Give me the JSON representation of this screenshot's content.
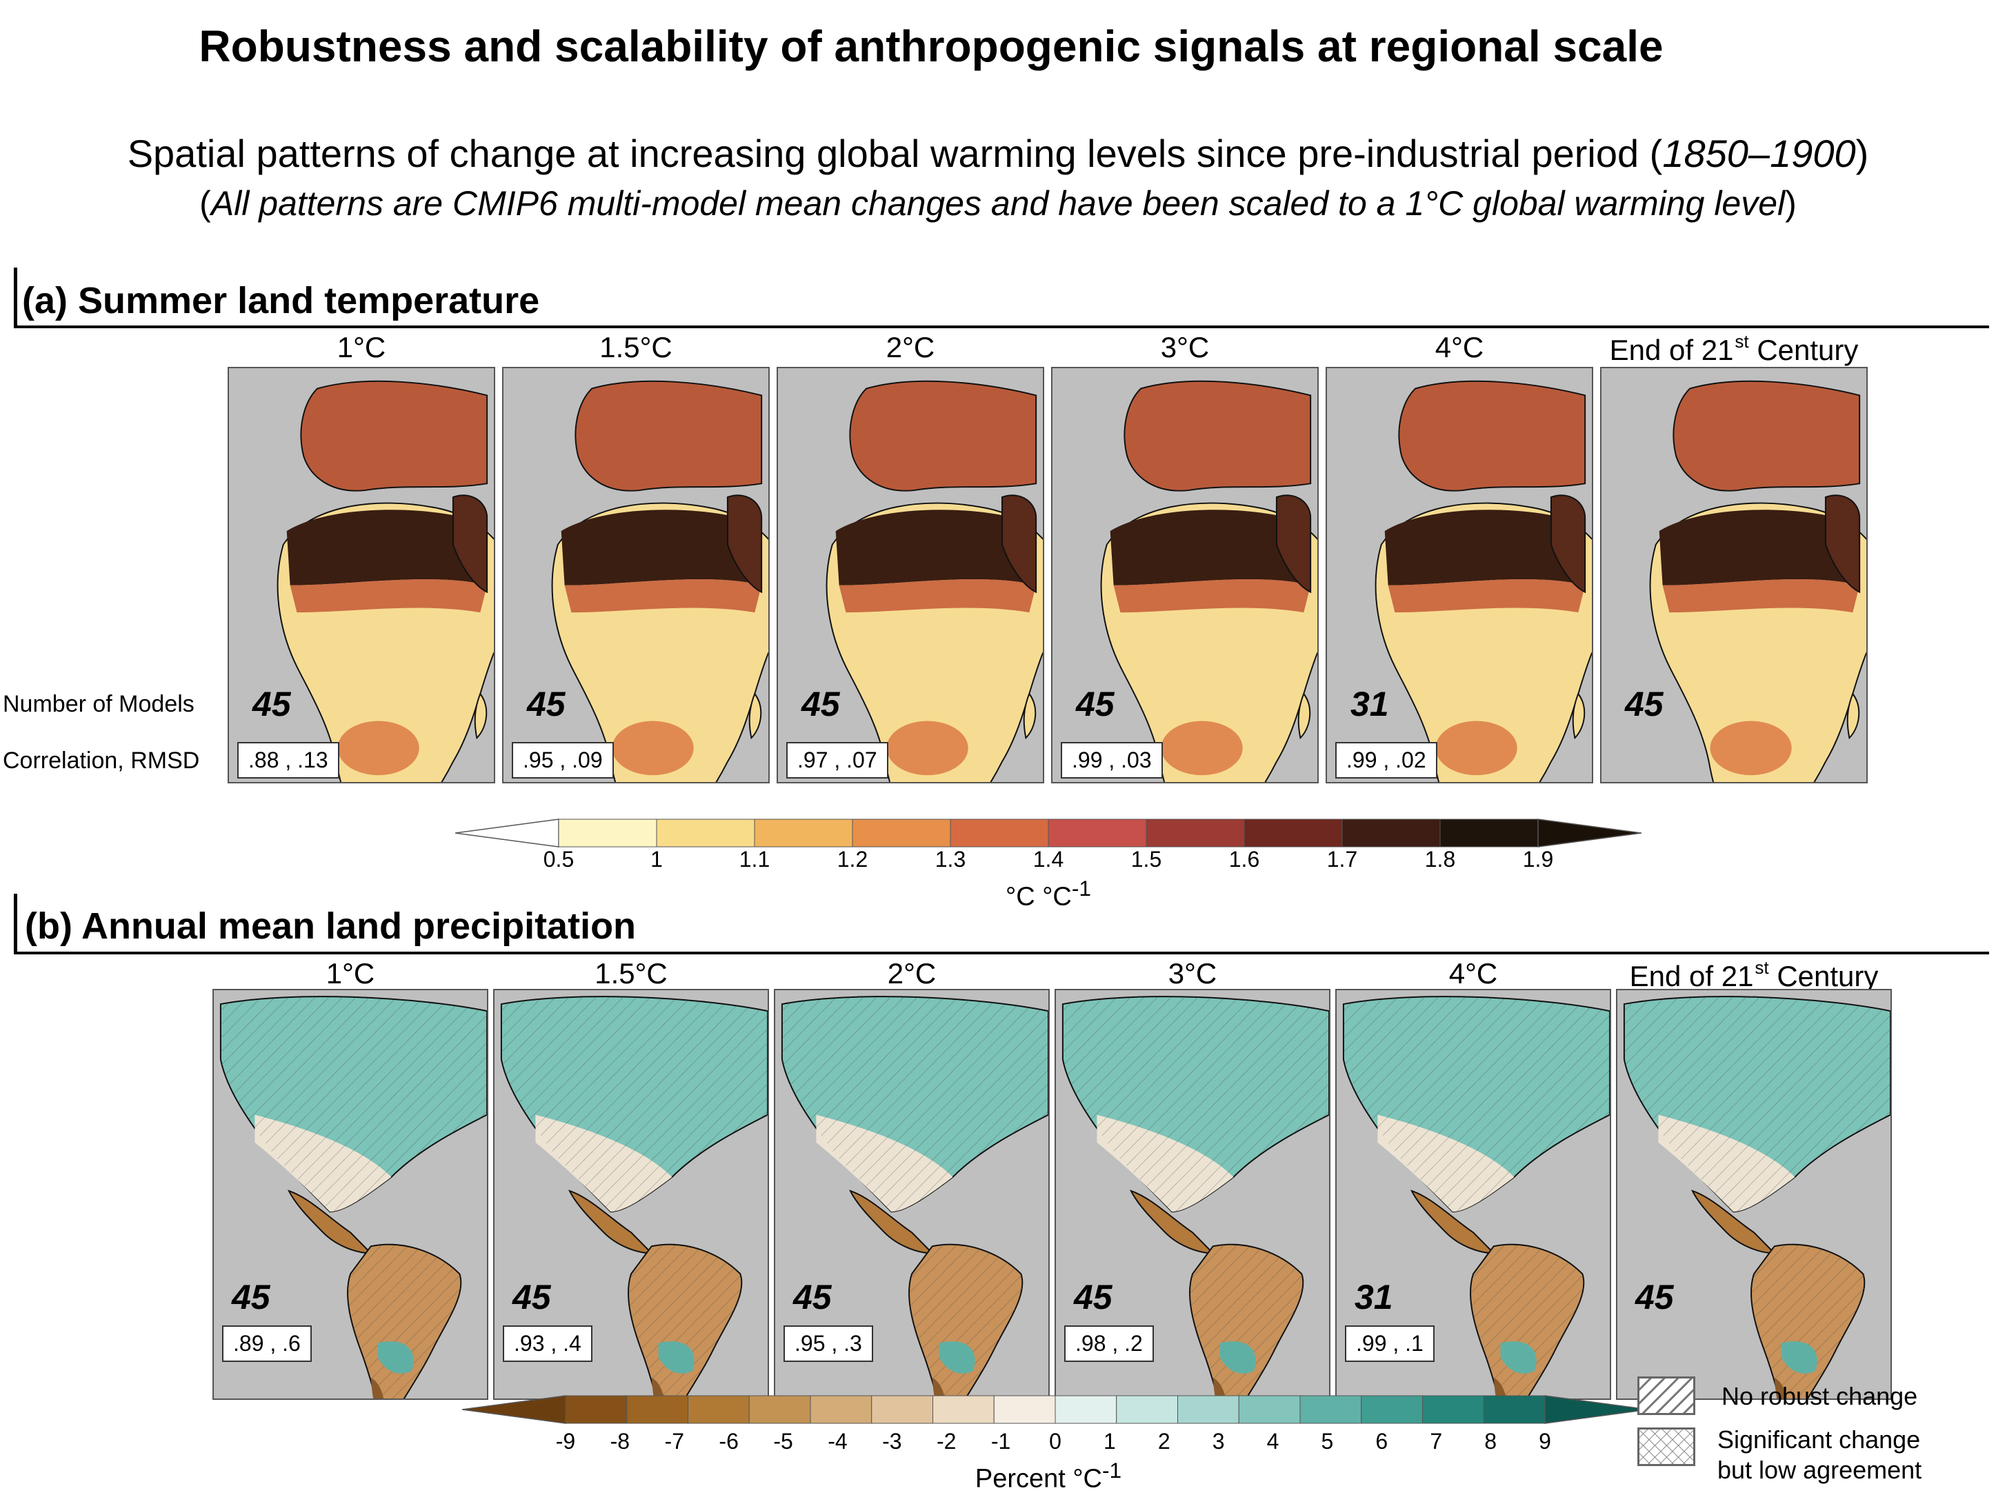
{
  "title": "Robustness and scalability of anthropogenic signals at regional scale",
  "subtitle1": {
    "pre": "Spatial patterns of change at increasing global warming levels since pre-industrial period (",
    "period": "1850–1900",
    "post": ")"
  },
  "subtitle2": {
    "pre": "(",
    "text": "All patterns are CMIP6 multi-model mean changes and have been scaled to a 1°C global warming level",
    "post": ")"
  },
  "row_labels": {
    "models": "Number of Models",
    "corr": "Correlation, RMSD"
  },
  "panel_a": {
    "title": "(a) Summer land temperature",
    "panels": [
      {
        "head": "1°C",
        "sup": "",
        "n": "45",
        "corr": ".88 , .13"
      },
      {
        "head": "1.5°C",
        "sup": "",
        "n": "45",
        "corr": ".95 , .09"
      },
      {
        "head": "2°C",
        "sup": "",
        "n": "45",
        "corr": ".97 , .07"
      },
      {
        "head": "3°C",
        "sup": "",
        "n": "45",
        "corr": ".99 , .03"
      },
      {
        "head": "4°C",
        "sup": "",
        "n": "31",
        "corr": ".99 , .02"
      },
      {
        "head": "End of 21",
        "sup": "st",
        "tail": " Century",
        "n": "45",
        "corr": ""
      }
    ],
    "colorbar": {
      "ticks": [
        "0.5",
        "1",
        "1.1",
        "1.2",
        "1.3",
        "1.4",
        "1.5",
        "1.6",
        "1.7",
        "1.8",
        "1.9"
      ],
      "colors": [
        "#ffffff",
        "#fdf6c4",
        "#f8dc8a",
        "#f1b55d",
        "#e6904a",
        "#d66b42",
        "#c8504a",
        "#9c3a34",
        "#6e2820",
        "#3d1d14",
        "#1f140c",
        "#1a1208"
      ],
      "label": "°C °C",
      "label_sup": "-1"
    }
  },
  "panel_b": {
    "title": "(b) Annual mean land precipitation",
    "panels": [
      {
        "head": "1°C",
        "sup": "",
        "n": "45",
        "corr": ".89 , .6"
      },
      {
        "head": "1.5°C",
        "sup": "",
        "n": "45",
        "corr": ".93 , .4"
      },
      {
        "head": "2°C",
        "sup": "",
        "n": "45",
        "corr": ".95 , .3"
      },
      {
        "head": "3°C",
        "sup": "",
        "n": "45",
        "corr": ".98 , .2"
      },
      {
        "head": "4°C",
        "sup": "",
        "n": "31",
        "corr": ".99 , .1"
      },
      {
        "head": "End of 21",
        "sup": "st",
        "tail": " Century",
        "n": "45",
        "corr": ""
      }
    ],
    "colorbar": {
      "ticks": [
        "-9",
        "-8",
        "-7",
        "-6",
        "-5",
        "-4",
        "-3",
        "-2",
        "-1",
        "0",
        "1",
        "2",
        "3",
        "4",
        "5",
        "6",
        "7",
        "8",
        "9"
      ],
      "colors": [
        "#6b3e10",
        "#855118",
        "#9c6524",
        "#b07a35",
        "#c29353",
        "#d3ac78",
        "#e1c49d",
        "#ecdac2",
        "#f5ece2",
        "#e3f1ee",
        "#c8e6e1",
        "#a6d6cf",
        "#83c4bb",
        "#60b1a7",
        "#3f9d92",
        "#27877c",
        "#176f66",
        "#0d5850"
      ],
      "label": "Percent °C",
      "label_sup": "-1"
    },
    "legend": {
      "no_robust": "No robust change",
      "significant_line1": "Significant change",
      "significant_line2": "but low agreement"
    }
  }
}
